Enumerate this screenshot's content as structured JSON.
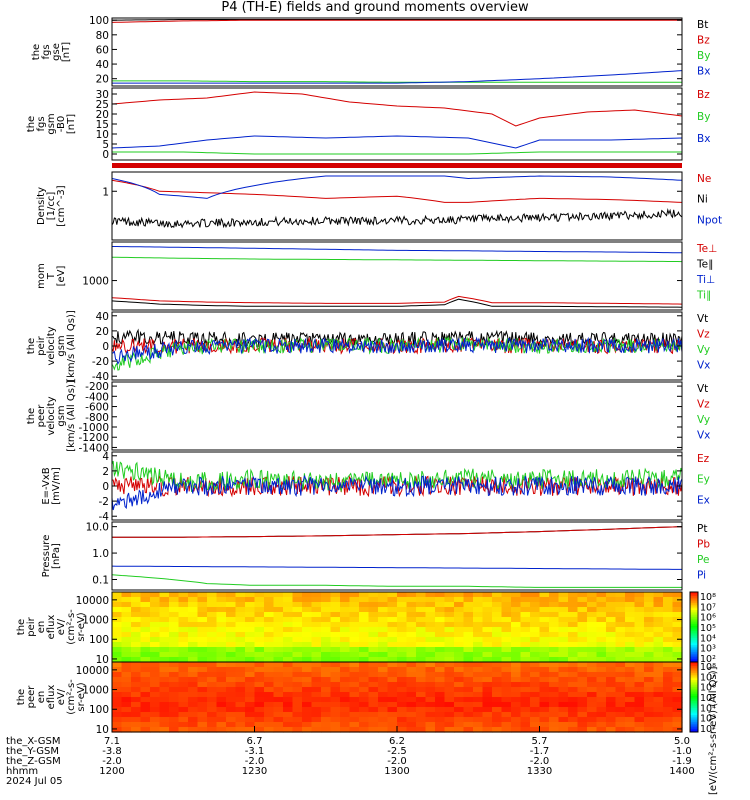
{
  "figure": {
    "title": "P4 (TH-E) fields and ground moments overview"
  },
  "colors": {
    "black": "#000000",
    "red": "#d40000",
    "green": "#22cc22",
    "blue": "#0022cc"
  },
  "chart_data": [
    {
      "type": "line",
      "panel": "fgs-gse",
      "ylabel": [
        "the",
        "fgs",
        "gse",
        "[nT]"
      ],
      "yticks": [
        "100",
        "80",
        "60",
        "40",
        "20"
      ],
      "ylim": [
        10,
        103
      ],
      "legend": [
        {
          "name": "Bt",
          "color": "black"
        },
        {
          "name": "Bz",
          "color": "red"
        },
        {
          "name": "By",
          "color": "green"
        },
        {
          "name": "Bx",
          "color": "blue"
        }
      ],
      "series": [
        {
          "name": "Bt",
          "x": [
            "12:00",
            "12:15",
            "12:30",
            "12:45",
            "13:00",
            "13:15",
            "13:30",
            "13:45",
            "14:00"
          ],
          "values": [
            100,
            101,
            101,
            101,
            101,
            101,
            101,
            101,
            101
          ]
        },
        {
          "name": "Bz",
          "x": [
            "12:00",
            "12:15",
            "12:30",
            "12:45",
            "13:00",
            "13:15",
            "13:30",
            "13:45",
            "14:00"
          ],
          "values": [
            97,
            99,
            100,
            100,
            100,
            100,
            100,
            100,
            100
          ]
        },
        {
          "name": "By",
          "x": [
            "12:00",
            "12:15",
            "12:30",
            "12:45",
            "13:00",
            "13:15",
            "13:30",
            "13:45",
            "14:00"
          ],
          "values": [
            17,
            17,
            16,
            16,
            15,
            15,
            15,
            15,
            15
          ]
        },
        {
          "name": "Bx",
          "x": [
            "12:00",
            "12:15",
            "12:30",
            "12:45",
            "13:00",
            "13:15",
            "13:30",
            "13:45",
            "14:00"
          ],
          "values": [
            14,
            14,
            14,
            14,
            14,
            16,
            20,
            25,
            31
          ]
        }
      ]
    },
    {
      "type": "line",
      "panel": "fgs-gsm",
      "ylabel": [
        "the",
        "fgs",
        "gsm",
        "-B0",
        "[nT]"
      ],
      "yticks": [
        "30",
        "25",
        "20",
        "15",
        "10",
        "5",
        "0"
      ],
      "ylim": [
        -3,
        33
      ],
      "legend": [
        {
          "name": "Bz",
          "color": "red"
        },
        {
          "name": "By",
          "color": "green"
        },
        {
          "name": "Bx",
          "color": "blue"
        }
      ],
      "series": [
        {
          "name": "Bz",
          "x": [
            "12:00",
            "12:10",
            "12:20",
            "12:30",
            "12:40",
            "12:50",
            "13:00",
            "13:10",
            "13:20",
            "13:25",
            "13:30",
            "13:40",
            "13:50",
            "14:00"
          ],
          "values": [
            25,
            27,
            28,
            31,
            30,
            26,
            24,
            23,
            20,
            14,
            18,
            21,
            22,
            19
          ]
        },
        {
          "name": "By",
          "x": [
            "12:00",
            "12:15",
            "12:30",
            "12:45",
            "13:00",
            "13:15",
            "13:30",
            "13:45",
            "14:00"
          ],
          "values": [
            1,
            1,
            0,
            0,
            0,
            0,
            1,
            1,
            1
          ]
        },
        {
          "name": "Bx",
          "x": [
            "12:00",
            "12:10",
            "12:20",
            "12:30",
            "12:45",
            "13:00",
            "13:15",
            "13:25",
            "13:30",
            "13:45",
            "14:00"
          ],
          "values": [
            3,
            4,
            7,
            9,
            8,
            9,
            8,
            3,
            7,
            7,
            8
          ]
        }
      ]
    },
    {
      "type": "line",
      "panel": "density",
      "yscale": "log",
      "ylabel": [
        "Density",
        "[1/cc]",
        "[cm^-3]"
      ],
      "yticks": [
        "1"
      ],
      "ylim": [
        0.03,
        4
      ],
      "legend": [
        {
          "name": "Ne",
          "color": "red"
        },
        {
          "name": "Ni",
          "color": "black"
        },
        {
          "name": "Npot",
          "color": "blue"
        }
      ],
      "series": [
        {
          "name": "Ne",
          "x": [
            "12:00",
            "12:10",
            "12:20",
            "12:30",
            "12:45",
            "13:00",
            "13:10",
            "13:15",
            "13:30",
            "13:45",
            "14:00"
          ],
          "values": [
            2.2,
            1.0,
            0.9,
            0.8,
            0.6,
            0.7,
            0.45,
            0.45,
            0.6,
            0.55,
            0.45
          ]
        },
        {
          "name": "Ni",
          "x": [
            "12:00",
            "12:10",
            "12:20",
            "12:30",
            "12:45",
            "13:00",
            "13:15",
            "13:30",
            "13:45",
            "14:00"
          ],
          "values": [
            0.12,
            0.1,
            0.1,
            0.11,
            0.12,
            0.12,
            0.13,
            0.15,
            0.17,
            0.2
          ]
        },
        {
          "name": "Npot",
          "x": [
            "12:00",
            "12:10",
            "12:20",
            "12:30",
            "12:45",
            "13:00",
            "13:10",
            "13:15",
            "13:30",
            "13:45",
            "14:00"
          ],
          "values": [
            2.5,
            0.8,
            0.6,
            1.5,
            3.0,
            3.0,
            3.0,
            2.5,
            3.0,
            2.8,
            2.2
          ]
        }
      ]
    },
    {
      "type": "line",
      "panel": "temperature",
      "yscale": "log",
      "ylabel": [
        "mom",
        "T",
        "[eV]"
      ],
      "yticks": [
        "1000"
      ],
      "ylim": [
        150,
        12000
      ],
      "legend": [
        {
          "name": "Te⊥",
          "color": "red"
        },
        {
          "name": "Te∥",
          "color": "black"
        },
        {
          "name": "Ti⊥",
          "color": "blue"
        },
        {
          "name": "Ti∥",
          "color": "green"
        }
      ],
      "series": [
        {
          "name": "Te⊥",
          "x": [
            "12:00",
            "12:10",
            "12:20",
            "12:30",
            "12:45",
            "13:00",
            "13:10",
            "13:13",
            "13:20",
            "13:30",
            "13:45",
            "14:00"
          ],
          "values": [
            330,
            270,
            250,
            240,
            230,
            230,
            250,
            360,
            240,
            240,
            230,
            220
          ]
        },
        {
          "name": "Te∥",
          "x": [
            "12:00",
            "12:10",
            "12:20",
            "12:30",
            "12:45",
            "13:00",
            "13:10",
            "13:13",
            "13:20",
            "13:30",
            "13:45",
            "14:00"
          ],
          "values": [
            270,
            220,
            200,
            190,
            190,
            190,
            210,
            300,
            190,
            190,
            185,
            180
          ]
        },
        {
          "name": "Ti⊥",
          "x": [
            "12:00",
            "12:15",
            "12:30",
            "12:45",
            "13:00",
            "13:15",
            "13:30",
            "13:45",
            "14:00"
          ],
          "values": [
            9000,
            8500,
            8000,
            7500,
            7000,
            6800,
            6500,
            6300,
            6000
          ]
        },
        {
          "name": "Ti∥",
          "x": [
            "12:00",
            "12:15",
            "12:30",
            "12:45",
            "13:00",
            "13:15",
            "13:30",
            "13:45",
            "14:00"
          ],
          "values": [
            4500,
            4200,
            4000,
            3900,
            3800,
            3700,
            3600,
            3500,
            3400
          ]
        }
      ]
    },
    {
      "type": "line",
      "panel": "peir-velocity",
      "ylabel": [
        "the",
        "peir",
        "velocity",
        "gsm",
        "[km/s (All Qs)]"
      ],
      "yticks": [
        "40",
        "20",
        "0",
        "-20",
        "-40"
      ],
      "ylim": [
        -45,
        45
      ],
      "legend": [
        {
          "name": "Vt",
          "color": "black"
        },
        {
          "name": "Vz",
          "color": "red"
        },
        {
          "name": "Vy",
          "color": "green"
        },
        {
          "name": "Vx",
          "color": "blue"
        }
      ],
      "series": [
        {
          "name": "Vt",
          "x": [
            "12:00",
            "12:15",
            "12:30",
            "12:45",
            "13:00",
            "13:15",
            "13:30",
            "13:45",
            "14:00"
          ],
          "values": [
            12,
            10,
            8,
            8,
            9,
            10,
            9,
            8,
            8
          ]
        },
        {
          "name": "Vz",
          "x": [
            "12:00",
            "12:15",
            "12:30",
            "12:45",
            "13:00",
            "13:15",
            "13:30",
            "13:45",
            "14:00"
          ],
          "values": [
            0,
            0,
            1,
            0,
            0,
            1,
            0,
            0,
            0
          ]
        },
        {
          "name": "Vy",
          "x": [
            "12:00",
            "12:15",
            "12:30",
            "12:45",
            "13:00",
            "13:15",
            "13:30",
            "13:45",
            "14:00"
          ],
          "values": [
            -25,
            -2,
            0,
            1,
            0,
            2,
            0,
            1,
            0
          ]
        },
        {
          "name": "Vx",
          "x": [
            "12:00",
            "12:15",
            "12:30",
            "12:45",
            "13:00",
            "13:15",
            "13:30",
            "13:45",
            "14:00"
          ],
          "values": [
            -15,
            -1,
            0,
            0,
            0,
            1,
            0,
            0,
            0
          ]
        }
      ]
    },
    {
      "type": "line",
      "panel": "peer-velocity",
      "ylabel": [
        "the",
        "peer",
        "velocity",
        "gsm",
        "[km/s (All Qs)]"
      ],
      "yticks": [
        "-200",
        "-400",
        "-600",
        "-800",
        "-1000",
        "-1200",
        "-1400"
      ],
      "ylim": [
        -1450,
        -120
      ],
      "legend": [
        {
          "name": "Vt",
          "color": "black"
        },
        {
          "name": "Vz",
          "color": "red"
        },
        {
          "name": "Vy",
          "color": "green"
        },
        {
          "name": "Vx",
          "color": "blue"
        }
      ],
      "series": []
    },
    {
      "type": "line",
      "panel": "efield",
      "ylabel": [
        "E=-VxB",
        "[mV/m]"
      ],
      "yticks": [
        "4",
        "2",
        "0",
        "-2",
        "-4"
      ],
      "ylim": [
        -4.5,
        4.5
      ],
      "legend": [
        {
          "name": "Ez",
          "color": "red"
        },
        {
          "name": "Ey",
          "color": "green"
        },
        {
          "name": "Ex",
          "color": "blue"
        }
      ],
      "series": [
        {
          "name": "Ez",
          "x": [
            "12:00",
            "12:15",
            "12:30",
            "12:45",
            "13:00",
            "13:15",
            "13:30",
            "13:45",
            "14:00"
          ],
          "values": [
            0,
            0,
            0,
            0,
            0,
            0,
            0,
            0,
            0
          ]
        },
        {
          "name": "Ey",
          "x": [
            "12:00",
            "12:15",
            "12:30",
            "12:45",
            "13:00",
            "13:15",
            "13:30",
            "13:45",
            "14:00"
          ],
          "values": [
            2.5,
            0.5,
            0.8,
            0.6,
            0.8,
            1.0,
            0.9,
            1.0,
            1.2
          ]
        },
        {
          "name": "Ex",
          "x": [
            "12:00",
            "12:15",
            "12:30",
            "12:45",
            "13:00",
            "13:15",
            "13:30",
            "13:45",
            "14:00"
          ],
          "values": [
            -2.0,
            0,
            0,
            0,
            0,
            0,
            0,
            0,
            0
          ]
        }
      ]
    },
    {
      "type": "line",
      "panel": "pressure",
      "yscale": "log",
      "ylabel": [
        "Pressure",
        "[nPa]"
      ],
      "yticks": [
        "10.0",
        "1.0",
        "0.1"
      ],
      "ylim": [
        0.04,
        15
      ],
      "legend": [
        {
          "name": "Pt",
          "color": "black"
        },
        {
          "name": "Pb",
          "color": "red"
        },
        {
          "name": "Pe",
          "color": "green"
        },
        {
          "name": "Pi",
          "color": "blue"
        }
      ],
      "series": [
        {
          "name": "Pt",
          "x": [
            "12:00",
            "12:15",
            "12:30",
            "12:45",
            "13:00",
            "13:15",
            "13:30",
            "13:45",
            "14:00"
          ],
          "values": [
            4.0,
            4.0,
            4.2,
            4.5,
            5.0,
            5.5,
            6.5,
            8.0,
            10.0
          ]
        },
        {
          "name": "Pb",
          "x": [
            "12:00",
            "12:15",
            "12:30",
            "12:45",
            "13:00",
            "13:15",
            "13:30",
            "13:45",
            "14:00"
          ],
          "values": [
            4.0,
            4.0,
            4.2,
            4.5,
            5.0,
            5.5,
            6.5,
            8.0,
            10.0
          ]
        },
        {
          "name": "Pe",
          "x": [
            "12:00",
            "12:10",
            "12:20",
            "12:30",
            "12:45",
            "13:00",
            "13:15",
            "13:30",
            "13:45",
            "14:00"
          ],
          "values": [
            0.15,
            0.11,
            0.07,
            0.06,
            0.06,
            0.055,
            0.055,
            0.05,
            0.05,
            0.05
          ]
        },
        {
          "name": "Pi",
          "x": [
            "12:00",
            "12:15",
            "12:30",
            "12:45",
            "13:00",
            "13:15",
            "13:30",
            "13:45",
            "14:00"
          ],
          "values": [
            0.32,
            0.31,
            0.3,
            0.29,
            0.28,
            0.27,
            0.26,
            0.25,
            0.24
          ]
        }
      ]
    },
    {
      "type": "heatmap",
      "panel": "peir-eflux",
      "yscale": "log",
      "ylabel": [
        "the",
        "peir",
        "en",
        "eflux",
        "eV/",
        "(cm^2-s-",
        "sr-eV)"
      ],
      "yticks": [
        "10000",
        "1000",
        "100",
        "10"
      ],
      "ylim": [
        7,
        25000
      ],
      "colorbar": {
        "ticks": [
          "10^8",
          "10^7",
          "10^6",
          "10^5",
          "10^4",
          "10^3",
          "10^2"
        ],
        "label": "[eV/(cm^2-s-sr-eV) (All Qs)]"
      }
    },
    {
      "type": "heatmap",
      "panel": "peer-eflux",
      "yscale": "log",
      "ylabel": [
        "the",
        "peer",
        "en",
        "eflux",
        "eV/",
        "(cm^2-s-",
        "sr-eV)"
      ],
      "yticks": [
        "10000",
        "1000",
        "100",
        "10"
      ],
      "ylim": [
        7,
        25000
      ],
      "colorbar": {
        "ticks": [
          "10^8",
          "10^7",
          "10^6",
          "10^5",
          "10^4",
          "10^3",
          "10^2"
        ],
        "label": "[eV/(cm^2-s-sr-eV) (All Qs)]"
      }
    }
  ],
  "xaxis": {
    "rows": [
      {
        "label": "the_X-GSM",
        "values": [
          "7.1",
          "6.7",
          "6.2",
          "5.7",
          "5.0"
        ]
      },
      {
        "label": "the_Y-GSM",
        "values": [
          "-3.8",
          "-3.1",
          "-2.5",
          "-1.7",
          "-1.0"
        ]
      },
      {
        "label": "the_Z-GSM",
        "values": [
          "-2.0",
          "-2.0",
          "-2.0",
          "-2.0",
          "-1.9"
        ]
      },
      {
        "label": "hhmm",
        "values": [
          "1200",
          "1230",
          "1300",
          "1330",
          "1400"
        ]
      },
      {
        "label": "2024 Jul 05",
        "values": []
      }
    ]
  },
  "units_label": "[eV/(cm^2-s-sr-eV) (All Qs)]"
}
